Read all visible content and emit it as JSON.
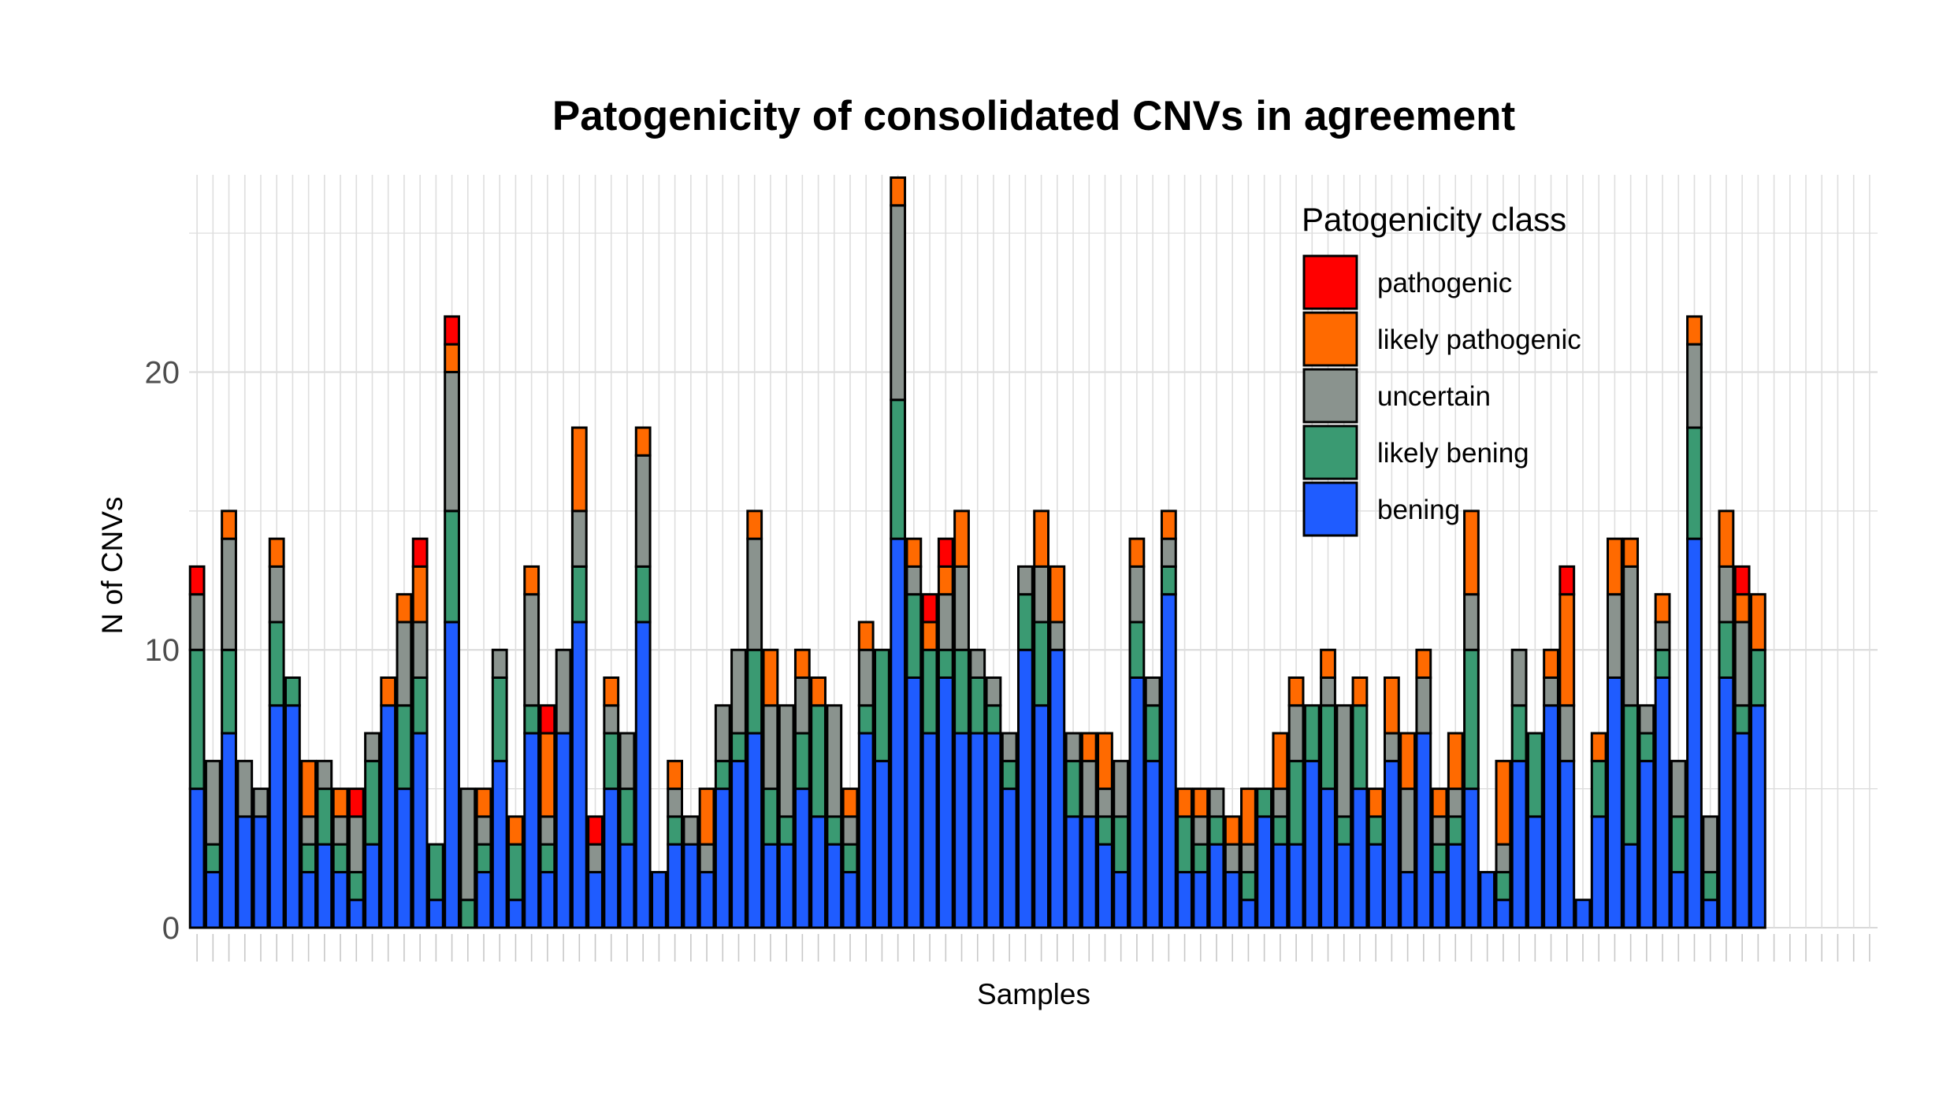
{
  "chart_data": {
    "type": "bar",
    "stacked": true,
    "title": "Patogenicity of consolidated CNVs in agreement",
    "xlabel": "Samples",
    "ylabel": "N of CNVs",
    "ylim": [
      0,
      27
    ],
    "y_ticks": [
      0,
      10,
      20
    ],
    "grid": true,
    "legend": {
      "title": "Patogenicity class",
      "placement": "top-right",
      "items": [
        "pathogenic",
        "likely pathogenic",
        "uncertain",
        "likely bening",
        "bening"
      ]
    },
    "n_samples": 106,
    "series": [
      {
        "name": "bening",
        "color": "#1f5cff",
        "values": [
          5,
          2,
          7,
          4,
          4,
          8,
          8,
          2,
          3,
          2,
          1,
          3,
          8,
          5,
          7,
          1,
          11,
          0,
          2,
          6,
          1,
          7,
          2,
          7,
          11,
          2,
          5,
          3,
          11,
          2,
          3,
          3,
          2,
          5,
          6,
          7,
          3,
          3,
          5,
          4,
          3,
          2,
          7,
          6,
          14,
          9,
          7,
          9,
          7,
          7,
          7,
          5,
          10,
          8,
          10,
          4,
          4,
          3,
          2,
          9,
          6,
          12,
          2,
          2,
          3,
          2,
          1,
          4,
          3,
          3,
          6,
          5,
          3,
          5,
          3,
          6,
          2,
          7,
          2,
          3,
          5,
          2,
          1,
          6,
          4,
          8,
          6,
          1,
          4,
          9,
          3,
          6,
          9,
          2,
          14,
          1,
          9,
          7,
          8,
          0,
          0,
          0,
          0,
          0,
          0,
          0
        ]
      },
      {
        "name": "likely bening",
        "color": "#3a9a72",
        "values": [
          5,
          1,
          3,
          0,
          0,
          3,
          1,
          1,
          2,
          1,
          1,
          3,
          0,
          3,
          2,
          2,
          4,
          1,
          1,
          3,
          2,
          1,
          1,
          0,
          2,
          0,
          2,
          2,
          2,
          0,
          1,
          0,
          0,
          1,
          1,
          3,
          2,
          1,
          2,
          4,
          1,
          1,
          1,
          4,
          5,
          3,
          3,
          1,
          3,
          2,
          1,
          1,
          2,
          3,
          0,
          2,
          0,
          1,
          2,
          2,
          2,
          1,
          2,
          1,
          1,
          0,
          1,
          1,
          1,
          3,
          2,
          3,
          1,
          3,
          1,
          0,
          0,
          0,
          1,
          1,
          5,
          0,
          1,
          2,
          3,
          0,
          0,
          0,
          2,
          0,
          5,
          1,
          1,
          2,
          4,
          1,
          2,
          1,
          2,
          0,
          0,
          0,
          0,
          0,
          0,
          0
        ]
      },
      {
        "name": "uncertain",
        "color": "#8a938e",
        "values": [
          2,
          3,
          4,
          2,
          1,
          2,
          0,
          1,
          1,
          1,
          2,
          1,
          0,
          3,
          2,
          0,
          5,
          4,
          1,
          1,
          0,
          4,
          1,
          3,
          2,
          1,
          1,
          2,
          4,
          0,
          1,
          1,
          1,
          2,
          3,
          4,
          3,
          4,
          2,
          0,
          4,
          1,
          2,
          0,
          7,
          1,
          0,
          2,
          3,
          1,
          1,
          1,
          1,
          2,
          1,
          1,
          2,
          1,
          2,
          2,
          1,
          1,
          0,
          1,
          1,
          1,
          1,
          0,
          1,
          2,
          0,
          1,
          4,
          0,
          0,
          1,
          3,
          2,
          1,
          1,
          2,
          0,
          1,
          2,
          0,
          1,
          2,
          0,
          0,
          3,
          5,
          1,
          1,
          2,
          3,
          2,
          2,
          3,
          0,
          0,
          0,
          0,
          0,
          0,
          0,
          0
        ]
      },
      {
        "name": "likely pathogenic",
        "color": "#ff6a00",
        "values": [
          0,
          0,
          1,
          0,
          0,
          1,
          0,
          2,
          0,
          1,
          0,
          0,
          1,
          1,
          2,
          0,
          1,
          0,
          1,
          0,
          1,
          1,
          3,
          0,
          3,
          0,
          1,
          0,
          1,
          0,
          1,
          0,
          2,
          0,
          0,
          1,
          2,
          0,
          1,
          1,
          0,
          1,
          1,
          0,
          1,
          1,
          1,
          1,
          2,
          0,
          0,
          0,
          0,
          2,
          2,
          0,
          1,
          2,
          0,
          1,
          0,
          1,
          1,
          1,
          0,
          1,
          2,
          0,
          2,
          1,
          0,
          1,
          0,
          1,
          1,
          2,
          2,
          1,
          1,
          2,
          3,
          0,
          3,
          0,
          0,
          1,
          4,
          0,
          1,
          2,
          1,
          0,
          1,
          0,
          1,
          0,
          2,
          1,
          2,
          0,
          0,
          0,
          0,
          0,
          0,
          0
        ]
      },
      {
        "name": "pathogenic",
        "color": "#ff0000",
        "values": [
          1,
          0,
          0,
          0,
          0,
          0,
          0,
          0,
          0,
          0,
          1,
          0,
          0,
          0,
          1,
          0,
          1,
          0,
          0,
          0,
          0,
          0,
          1,
          0,
          0,
          1,
          0,
          0,
          0,
          0,
          0,
          0,
          0,
          0,
          0,
          0,
          0,
          0,
          0,
          0,
          0,
          0,
          0,
          0,
          0,
          0,
          1,
          1,
          0,
          0,
          0,
          0,
          0,
          0,
          0,
          0,
          0,
          0,
          0,
          0,
          0,
          0,
          0,
          0,
          0,
          0,
          0,
          0,
          0,
          0,
          0,
          0,
          0,
          0,
          0,
          0,
          0,
          0,
          0,
          0,
          0,
          0,
          0,
          0,
          0,
          0,
          1,
          0,
          0,
          0,
          0,
          0,
          0,
          0,
          0,
          0,
          0,
          1,
          0,
          0,
          0,
          0,
          0,
          0,
          0,
          0
        ]
      }
    ]
  }
}
